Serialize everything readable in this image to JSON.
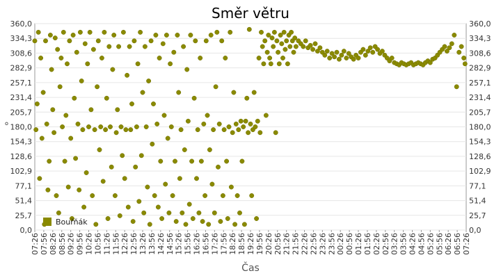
{
  "chart_data": {
    "type": "scatter",
    "title": "Směr větru",
    "xlabel": "Čas",
    "ylabel": "°",
    "ylim": [
      0,
      360
    ],
    "grid": true,
    "legend_position": "bottom-left",
    "colors": {
      "series": "#8a8a00",
      "grid": "#e6e6e6",
      "axis": "#999999"
    },
    "y_ticks": [
      "0,0",
      "25,7",
      "51,4",
      "77,1",
      "102,9",
      "128,6",
      "154,3",
      "180,0",
      "205,7",
      "231,4",
      "257,1",
      "282,9",
      "308,6",
      "334,3",
      "360,0"
    ],
    "x_ticks": [
      "07:26",
      "07:56",
      "08:26",
      "08:56",
      "09:26",
      "09:56",
      "10:26",
      "10:56",
      "11:26",
      "11:56",
      "12:26",
      "12:56",
      "13:26",
      "13:56",
      "14:26",
      "14:56",
      "15:26",
      "15:56",
      "16:26",
      "16:56",
      "17:26",
      "17:56",
      "18:26",
      "18:56",
      "19:26",
      "19:56",
      "20:26",
      "20:56",
      "21:26",
      "21:56",
      "22:26",
      "22:56",
      "23:26",
      "23:56",
      "00:26",
      "00:56",
      "01:26",
      "01:56",
      "02:26",
      "02:56",
      "03:26",
      "03:56",
      "04:26",
      "04:56",
      "05:26",
      "05:56",
      "06:26",
      "06:56",
      "07:26"
    ],
    "series": [
      {
        "name": "Bouřňák",
        "points": [
          [
            "07:26",
            330
          ],
          [
            "07:30",
            175
          ],
          [
            "07:34",
            220
          ],
          [
            "07:38",
            345
          ],
          [
            "07:42",
            90
          ],
          [
            "07:46",
            300
          ],
          [
            "07:50",
            160
          ],
          [
            "07:54",
            240
          ],
          [
            "07:58",
            10
          ],
          [
            "08:02",
            330
          ],
          [
            "08:06",
            185
          ],
          [
            "08:10",
            70
          ],
          [
            "08:14",
            120
          ],
          [
            "08:18",
            340
          ],
          [
            "08:22",
            280
          ],
          [
            "08:26",
            210
          ],
          [
            "08:30",
            170
          ],
          [
            "08:34",
            335
          ],
          [
            "08:38",
            60
          ],
          [
            "08:42",
            315
          ],
          [
            "08:46",
            30
          ],
          [
            "08:50",
            250
          ],
          [
            "08:54",
            300
          ],
          [
            "08:58",
            180
          ],
          [
            "09:02",
            345
          ],
          [
            "09:06",
            120
          ],
          [
            "09:10",
            200
          ],
          [
            "09:14",
            290
          ],
          [
            "09:18",
            75
          ],
          [
            "09:22",
            330
          ],
          [
            "09:26",
            160
          ],
          [
            "09:30",
            20
          ],
          [
            "09:34",
            340
          ],
          [
            "09:38",
            230
          ],
          [
            "09:42",
            125
          ],
          [
            "09:46",
            310
          ],
          [
            "09:50",
            185
          ],
          [
            "09:54",
            70
          ],
          [
            "09:58",
            345
          ],
          [
            "10:02",
            260
          ],
          [
            "10:06",
            175
          ],
          [
            "10:10",
            40
          ],
          [
            "10:14",
            325
          ],
          [
            "10:18",
            100
          ],
          [
            "10:22",
            290
          ],
          [
            "10:26",
            180
          ],
          [
            "10:30",
            345
          ],
          [
            "10:34",
            210
          ],
          [
            "10:38",
            60
          ],
          [
            "10:42",
            315
          ],
          [
            "10:46",
            175
          ],
          [
            "10:50",
            10
          ],
          [
            "10:54",
            250
          ],
          [
            "10:58",
            330
          ],
          [
            "11:02",
            140
          ],
          [
            "11:06",
            180
          ],
          [
            "11:10",
            300
          ],
          [
            "11:14",
            85
          ],
          [
            "11:18",
            345
          ],
          [
            "11:22",
            175
          ],
          [
            "11:26",
            230
          ],
          [
            "11:30",
            20
          ],
          [
            "11:34",
            320
          ],
          [
            "11:38",
            180
          ],
          [
            "11:42",
            110
          ],
          [
            "11:46",
            280
          ],
          [
            "11:50",
            340
          ],
          [
            "11:54",
            60
          ],
          [
            "11:58",
            170
          ],
          [
            "12:02",
            210
          ],
          [
            "12:06",
            320
          ],
          [
            "12:10",
            25
          ],
          [
            "12:14",
            180
          ],
          [
            "12:18",
            130
          ],
          [
            "12:22",
            345
          ],
          [
            "12:26",
            90
          ],
          [
            "12:30",
            175
          ],
          [
            "12:34",
            270
          ],
          [
            "12:38",
            40
          ],
          [
            "12:42",
            320
          ],
          [
            "12:46",
            175
          ],
          [
            "12:50",
            220
          ],
          [
            "12:54",
            15
          ],
          [
            "12:58",
            330
          ],
          [
            "13:02",
            110
          ],
          [
            "13:06",
            180
          ],
          [
            "13:10",
            290
          ],
          [
            "13:14",
            50
          ],
          [
            "13:18",
            345
          ],
          [
            "13:22",
            130
          ],
          [
            "13:26",
            240
          ],
          [
            "13:30",
            30
          ],
          [
            "13:34",
            320
          ],
          [
            "13:38",
            180
          ],
          [
            "13:42",
            75
          ],
          [
            "13:46",
            260
          ],
          [
            "13:50",
            10
          ],
          [
            "13:54",
            330
          ],
          [
            "13:58",
            150
          ],
          [
            "14:02",
            220
          ],
          [
            "14:06",
            60
          ],
          [
            "14:10",
            340
          ],
          [
            "14:14",
            185
          ],
          [
            "14:18",
            40
          ],
          [
            "14:22",
            300
          ],
          [
            "14:26",
            120
          ],
          [
            "14:30",
            20
          ],
          [
            "14:34",
            325
          ],
          [
            "14:38",
            200
          ],
          [
            "14:42",
            80
          ],
          [
            "14:46",
            340
          ],
          [
            "14:50",
            160
          ],
          [
            "14:54",
            30
          ],
          [
            "14:58",
            290
          ],
          [
            "15:02",
            180
          ],
          [
            "15:06",
            60
          ],
          [
            "15:10",
            310
          ],
          [
            "15:14",
            120
          ],
          [
            "15:18",
            15
          ],
          [
            "15:22",
            340
          ],
          [
            "15:26",
            240
          ],
          [
            "15:30",
            90
          ],
          [
            "15:34",
            175
          ],
          [
            "15:38",
            30
          ],
          [
            "15:42",
            320
          ],
          [
            "15:46",
            140
          ],
          [
            "15:50",
            10
          ],
          [
            "15:54",
            280
          ],
          [
            "15:58",
            190
          ],
          [
            "16:02",
            45
          ],
          [
            "16:06",
            340
          ],
          [
            "16:10",
            120
          ],
          [
            "16:14",
            20
          ],
          [
            "16:18",
            230
          ],
          [
            "16:22",
            330
          ],
          [
            "16:26",
            90
          ],
          [
            "16:30",
            175
          ],
          [
            "16:34",
            30
          ],
          [
            "16:38",
            300
          ],
          [
            "16:42",
            120
          ],
          [
            "16:46",
            15
          ],
          [
            "16:50",
            185
          ],
          [
            "16:54",
            60
          ],
          [
            "16:58",
            330
          ],
          [
            "17:02",
            200
          ],
          [
            "17:06",
            10
          ],
          [
            "17:10",
            140
          ],
          [
            "17:14",
            340
          ],
          [
            "17:18",
            80
          ],
          [
            "17:22",
            175
          ],
          [
            "17:26",
            30
          ],
          [
            "17:30",
            250
          ],
          [
            "17:34",
            345
          ],
          [
            "17:38",
            110
          ],
          [
            "17:42",
            185
          ],
          [
            "17:46",
            15
          ],
          [
            "17:50",
            330
          ],
          [
            "17:54",
            60
          ],
          [
            "17:58",
            175
          ],
          [
            "18:02",
            300
          ],
          [
            "18:06",
            120
          ],
          [
            "18:10",
            20
          ],
          [
            "18:14",
            180
          ],
          [
            "18:18",
            345
          ],
          [
            "18:22",
            75
          ],
          [
            "18:26",
            170
          ],
          [
            "18:30",
            240
          ],
          [
            "18:34",
            10
          ],
          [
            "18:38",
            185
          ],
          [
            "18:42",
            60
          ],
          [
            "18:46",
            175
          ],
          [
            "18:50",
            30
          ],
          [
            "18:54",
            190
          ],
          [
            "18:58",
            120
          ],
          [
            "19:02",
            180
          ],
          [
            "19:06",
            10
          ],
          [
            "19:10",
            190
          ],
          [
            "19:14",
            230
          ],
          [
            "19:18",
            170
          ],
          [
            "19:22",
            350
          ],
          [
            "19:26",
            185
          ],
          [
            "19:30",
            60
          ],
          [
            "19:34",
            175
          ],
          [
            "19:38",
            240
          ],
          [
            "19:42",
            180
          ],
          [
            "19:46",
            20
          ],
          [
            "19:50",
            190
          ],
          [
            "19:54",
            300
          ],
          [
            "19:58",
            170
          ],
          [
            "20:02",
            345
          ],
          [
            "20:06",
            320
          ],
          [
            "20:10",
            290
          ],
          [
            "20:14",
            330
          ],
          [
            "20:18",
            200
          ],
          [
            "20:22",
            310
          ],
          [
            "20:26",
            340
          ],
          [
            "20:30",
            300
          ],
          [
            "20:34",
            290
          ],
          [
            "20:38",
            335
          ],
          [
            "20:42",
            320
          ],
          [
            "20:46",
            345
          ],
          [
            "20:50",
            170
          ],
          [
            "20:54",
            330
          ],
          [
            "20:58",
            310
          ],
          [
            "21:02",
            290
          ],
          [
            "21:06",
            340
          ],
          [
            "21:10",
            325
          ],
          [
            "21:14",
            300
          ],
          [
            "21:18",
            345
          ],
          [
            "21:22",
            315
          ],
          [
            "21:26",
            330
          ],
          [
            "21:30",
            290
          ],
          [
            "21:34",
            340
          ],
          [
            "21:38",
            320
          ],
          [
            "21:42",
            345
          ],
          [
            "21:46",
            330
          ],
          [
            "21:50",
            310
          ],
          [
            "21:54",
            335
          ],
          [
            "21:58",
            320
          ],
          [
            "22:06",
            330
          ],
          [
            "22:14",
            325
          ],
          [
            "22:22",
            320
          ],
          [
            "22:30",
            330
          ],
          [
            "22:38",
            318
          ],
          [
            "22:46",
            322
          ],
          [
            "22:54",
            315
          ],
          [
            "23:02",
            325
          ],
          [
            "23:10",
            312
          ],
          [
            "23:18",
            318
          ],
          [
            "23:26",
            310
          ],
          [
            "23:34",
            305
          ],
          [
            "23:42",
            312
          ],
          [
            "23:50",
            300
          ],
          [
            "23:58",
            308
          ],
          [
            "00:06",
            302
          ],
          [
            "00:14",
            310
          ],
          [
            "00:22",
            298
          ],
          [
            "00:30",
            305
          ],
          [
            "00:38",
            312
          ],
          [
            "00:46",
            300
          ],
          [
            "00:54",
            308
          ],
          [
            "01:02",
            302
          ],
          [
            "01:10",
            298
          ],
          [
            "01:18",
            305
          ],
          [
            "01:26",
            300
          ],
          [
            "01:34",
            310
          ],
          [
            "01:42",
            315
          ],
          [
            "01:50",
            305
          ],
          [
            "01:58",
            312
          ],
          [
            "02:06",
            318
          ],
          [
            "02:14",
            310
          ],
          [
            "02:22",
            320
          ],
          [
            "02:30",
            315
          ],
          [
            "02:38",
            308
          ],
          [
            "02:46",
            312
          ],
          [
            "02:54",
            305
          ],
          [
            "03:02",
            300
          ],
          [
            "03:10",
            295
          ],
          [
            "03:18",
            300
          ],
          [
            "03:26",
            292
          ],
          [
            "03:34",
            290
          ],
          [
            "03:42",
            288
          ],
          [
            "03:50",
            292
          ],
          [
            "03:58",
            290
          ],
          [
            "04:06",
            288
          ],
          [
            "04:14",
            290
          ],
          [
            "04:22",
            292
          ],
          [
            "04:30",
            288
          ],
          [
            "04:38",
            290
          ],
          [
            "04:46",
            292
          ],
          [
            "04:54",
            290
          ],
          [
            "05:02",
            288
          ],
          [
            "05:10",
            292
          ],
          [
            "05:18",
            295
          ],
          [
            "05:26",
            292
          ],
          [
            "05:34",
            298
          ],
          [
            "05:42",
            300
          ],
          [
            "05:50",
            305
          ],
          [
            "05:58",
            310
          ],
          [
            "06:06",
            315
          ],
          [
            "06:14",
            320
          ],
          [
            "06:22",
            312
          ],
          [
            "06:30",
            318
          ],
          [
            "06:38",
            325
          ],
          [
            "06:46",
            340
          ],
          [
            "06:54",
            250
          ],
          [
            "07:02",
            310
          ],
          [
            "07:10",
            320
          ],
          [
            "07:18",
            300
          ],
          [
            "07:22",
            290
          ]
        ]
      }
    ]
  }
}
